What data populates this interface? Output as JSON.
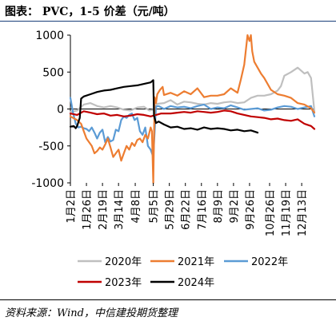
{
  "header": {
    "title": "图表：  PVC，1-5 价差（元/吨）"
  },
  "footer": {
    "source": "资料来源：Wind，中信建投期货整理"
  },
  "chart_data": {
    "type": "line",
    "title": "PVC，1-5 价差（元/吨）",
    "xlabel": "",
    "ylabel": "",
    "ylim": [
      -1000,
      1000
    ],
    "yticks": [
      1000,
      500,
      0,
      -500,
      -1000
    ],
    "x_tick_labels": [
      "1月2日",
      "1月26日",
      "2月19日",
      "3月14日",
      "4月8日",
      "5月5日",
      "5月29日",
      "6月22日",
      "7月16日",
      "8月9日",
      "9月2日",
      "9月26日",
      "10月26日",
      "11月19日",
      "12月13日"
    ],
    "x_tick_positions": [
      0,
      24,
      48,
      72,
      97,
      124,
      148,
      172,
      196,
      220,
      244,
      268,
      298,
      322,
      346
    ],
    "x_domain": [
      0,
      365
    ],
    "grid": false,
    "legend_position": "bottom",
    "series": [
      {
        "name": "2020年",
        "color": "#bfbfbf",
        "x": [
          0,
          10,
          20,
          30,
          40,
          50,
          60,
          70,
          80,
          90,
          100,
          110,
          118,
          124,
          130,
          140,
          150,
          160,
          170,
          180,
          190,
          200,
          210,
          220,
          230,
          240,
          250,
          260,
          270,
          280,
          290,
          300,
          310,
          315,
          320,
          330,
          340,
          350,
          355,
          360,
          365
        ],
        "y": [
          -40,
          -20,
          60,
          80,
          40,
          20,
          40,
          20,
          -10,
          -20,
          20,
          30,
          -20,
          -10,
          70,
          80,
          120,
          60,
          100,
          90,
          70,
          60,
          80,
          70,
          90,
          100,
          80,
          90,
          150,
          180,
          180,
          200,
          250,
          310,
          450,
          500,
          560,
          480,
          500,
          420,
          -30
        ]
      },
      {
        "name": "2021年",
        "color": "#ed7d31",
        "x": [
          0,
          10,
          16,
          20,
          24,
          28,
          32,
          36,
          40,
          44,
          48,
          52,
          56,
          60,
          64,
          68,
          72,
          76,
          80,
          84,
          88,
          92,
          96,
          100,
          104,
          108,
          112,
          116,
          120,
          122,
          124,
          126,
          128,
          130,
          134,
          138,
          140,
          150,
          160,
          170,
          180,
          190,
          200,
          210,
          220,
          230,
          240,
          250,
          255,
          260,
          265,
          268,
          270,
          272,
          275,
          280,
          285,
          290,
          300,
          310,
          320,
          330,
          340,
          350,
          360,
          365
        ],
        "y": [
          -100,
          -150,
          -200,
          -300,
          -400,
          -450,
          -500,
          -600,
          -570,
          -520,
          -550,
          -480,
          -400,
          -520,
          -650,
          -600,
          -550,
          -700,
          -600,
          -500,
          -550,
          -460,
          -500,
          -420,
          -400,
          -450,
          -350,
          -400,
          -250,
          -300,
          -1000,
          160,
          80,
          200,
          260,
          300,
          190,
          220,
          180,
          240,
          200,
          280,
          160,
          180,
          180,
          200,
          280,
          220,
          400,
          600,
          1000,
          920,
          1000,
          780,
          640,
          560,
          480,
          420,
          260,
          200,
          180,
          150,
          80,
          60,
          10,
          -50
        ]
      },
      {
        "name": "2022年",
        "color": "#5b9bd5",
        "x": [
          0,
          4,
          8,
          12,
          16,
          20,
          24,
          28,
          32,
          36,
          40,
          44,
          48,
          52,
          56,
          60,
          64,
          68,
          72,
          76,
          80,
          84,
          88,
          92,
          96,
          100,
          104,
          108,
          112,
          116,
          120,
          124,
          128,
          132,
          136,
          140,
          150,
          160,
          170,
          180,
          190,
          200,
          210,
          220,
          230,
          240,
          250,
          260,
          270,
          280,
          290,
          300,
          310,
          320,
          330,
          340,
          350,
          360,
          365
        ],
        "y": [
          150,
          -50,
          -200,
          -250,
          -240,
          -260,
          -270,
          -300,
          -250,
          -320,
          -400,
          -320,
          -280,
          -450,
          -380,
          -440,
          -420,
          -280,
          -300,
          -150,
          -100,
          -120,
          -80,
          -60,
          -150,
          -120,
          -300,
          -350,
          -250,
          -500,
          -550,
          -650,
          30,
          40,
          20,
          0,
          40,
          20,
          30,
          10,
          40,
          60,
          0,
          20,
          10,
          50,
          20,
          -10,
          0,
          10,
          -20,
          -10,
          20,
          40,
          30,
          0,
          20,
          40,
          -100
        ]
      },
      {
        "name": "2023年",
        "color": "#c00000",
        "x": [
          0,
          10,
          20,
          30,
          40,
          50,
          60,
          70,
          80,
          90,
          100,
          110,
          120,
          128,
          136,
          150,
          160,
          170,
          180,
          190,
          200,
          210,
          220,
          230,
          240,
          250,
          260,
          270,
          280,
          290,
          300,
          310,
          320,
          330,
          340,
          350,
          360,
          365
        ],
        "y": [
          -60,
          -80,
          -30,
          -50,
          -70,
          -60,
          -90,
          -80,
          -100,
          -90,
          -70,
          -80,
          -100,
          -80,
          -60,
          -60,
          -50,
          -40,
          -50,
          -30,
          -40,
          -50,
          -40,
          -20,
          -30,
          -60,
          -80,
          -100,
          -110,
          -120,
          -140,
          -130,
          -150,
          -160,
          -140,
          -200,
          -230,
          -270
        ]
      },
      {
        "name": "2024年",
        "color": "#000000",
        "x": [
          0,
          5,
          8,
          10,
          14,
          16,
          20,
          30,
          40,
          50,
          60,
          70,
          80,
          90,
          100,
          110,
          120,
          124,
          125,
          128,
          132,
          140,
          150,
          160,
          170,
          180,
          190,
          200,
          210,
          220,
          230,
          240,
          250,
          260,
          270,
          280
        ],
        "y": [
          -240,
          -230,
          -260,
          -230,
          -120,
          140,
          170,
          200,
          230,
          250,
          260,
          280,
          300,
          310,
          320,
          340,
          360,
          390,
          -90,
          -190,
          -170,
          -210,
          -250,
          -240,
          -270,
          -260,
          -280,
          -250,
          -270,
          -260,
          -270,
          -290,
          -280,
          -300,
          -290,
          -320
        ]
      }
    ]
  }
}
